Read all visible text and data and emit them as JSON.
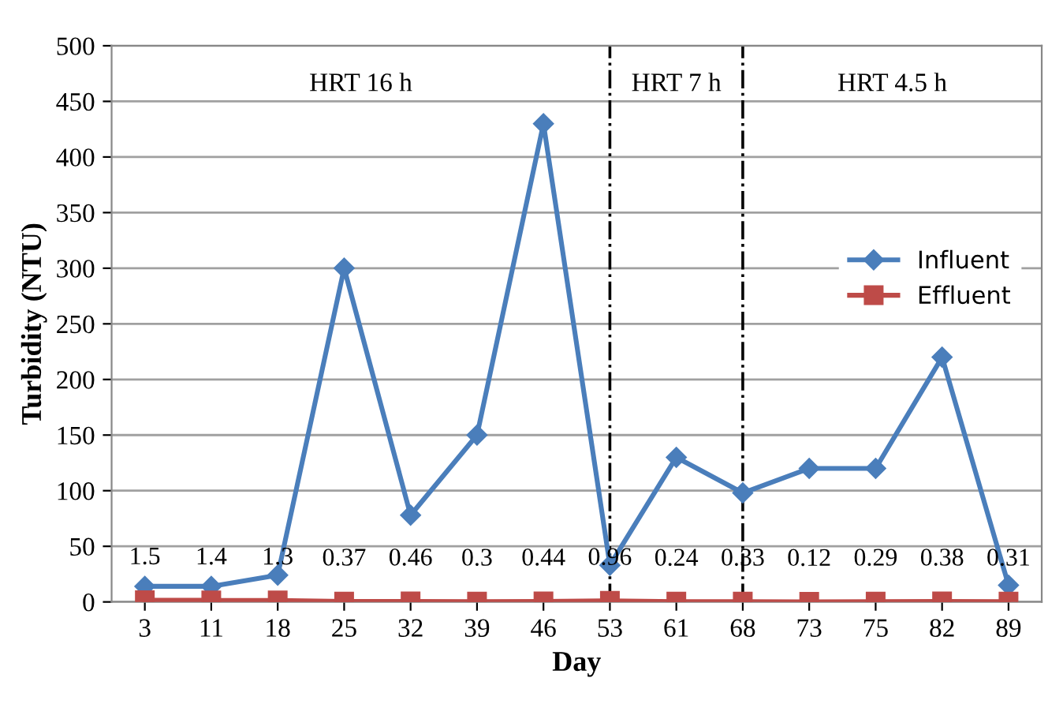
{
  "chart_data": {
    "type": "line",
    "xlabel": "Day",
    "ylabel": "Turbidity (NTU)",
    "categories": [
      "3",
      "11",
      "18",
      "25",
      "32",
      "39",
      "46",
      "53",
      "61",
      "68",
      "73",
      "75",
      "82",
      "89"
    ],
    "series": [
      {
        "name": "Influent",
        "color": "#4a7ebb",
        "marker": "diamond",
        "values": [
          14,
          14,
          24,
          300,
          78,
          150,
          430,
          33,
          130,
          98,
          120,
          120,
          220,
          15
        ]
      },
      {
        "name": "Effluent",
        "color": "#be4b48",
        "marker": "square",
        "values": [
          1.5,
          1.4,
          1.3,
          0.37,
          0.46,
          0.3,
          0.44,
          0.96,
          0.24,
          0.33,
          0.12,
          0.29,
          0.38,
          0.31
        ],
        "value_labels": [
          "1.5",
          "1.4",
          "1.3",
          "0.37",
          "0.46",
          "0.3",
          "0.44",
          "0.96",
          "0.24",
          "0.33",
          "0.12",
          "0.29",
          "0.38",
          "0.31"
        ]
      }
    ],
    "ylim": [
      0,
      500
    ],
    "yticks": [
      0,
      50,
      100,
      150,
      200,
      250,
      300,
      350,
      400,
      450,
      500
    ],
    "ref_lines": [
      {
        "axis": "x",
        "value": "53",
        "color": "#000000",
        "line_style": "dashdot"
      },
      {
        "axis": "x",
        "value": "68",
        "color": "#000000",
        "line_style": "dashdot"
      }
    ],
    "annotations": [
      "HRT 16 h",
      "HRT 7 h",
      "HRT 4.5 h"
    ],
    "grid": "y",
    "legend": "right"
  }
}
